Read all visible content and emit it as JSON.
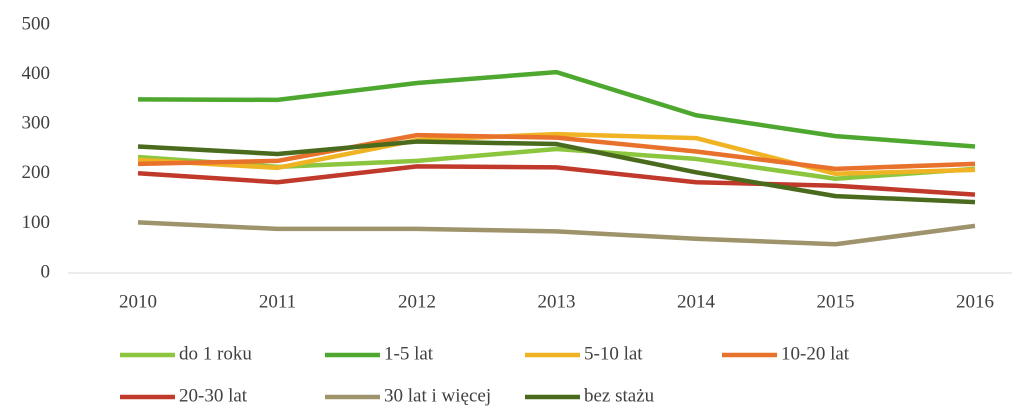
{
  "chart_data": {
    "type": "line",
    "categories": [
      "2010",
      "2011",
      "2012",
      "2013",
      "2014",
      "2015",
      "2016"
    ],
    "series": [
      {
        "name": "do 1 roku",
        "color": "#8cc63e",
        "values": [
          234,
          214,
          226,
          250,
          230,
          190,
          210
        ]
      },
      {
        "name": "1-5 lat",
        "color": "#4ea72e",
        "values": [
          350,
          349,
          383,
          405,
          318,
          276,
          255
        ]
      },
      {
        "name": "5-10 lat",
        "color": "#f0b323",
        "values": [
          228,
          212,
          268,
          280,
          272,
          200,
          208
        ]
      },
      {
        "name": "10-20 lat",
        "color": "#e8712b",
        "values": [
          220,
          226,
          278,
          273,
          245,
          210,
          220
        ]
      },
      {
        "name": "20-30 lat",
        "color": "#c0392b",
        "values": [
          201,
          183,
          215,
          213,
          183,
          176,
          158
        ]
      },
      {
        "name": "30 lat i więcej",
        "color": "#9e936a",
        "values": [
          102,
          89,
          89,
          84,
          69,
          58,
          95
        ]
      },
      {
        "name": "bez stażu",
        "color": "#4a6b1e",
        "values": [
          255,
          240,
          265,
          260,
          203,
          155,
          143
        ]
      }
    ],
    "ylim": [
      0,
      500
    ],
    "yticks": [
      0,
      100,
      200,
      300,
      400,
      500
    ],
    "grid": false
  }
}
